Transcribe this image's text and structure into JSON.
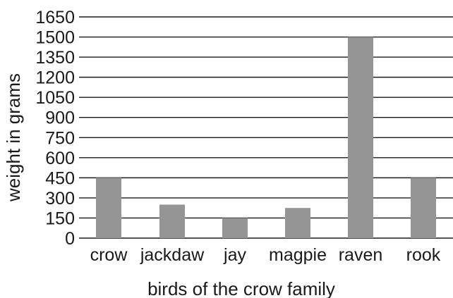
{
  "chart_data": {
    "type": "bar",
    "categories": [
      "crow",
      "jackdaw",
      "jay",
      "magpie",
      "raven",
      "rook"
    ],
    "values": [
      450,
      250,
      150,
      225,
      1500,
      450
    ],
    "xlabel": "birds of the crow family",
    "ylabel": "weight in grams",
    "ylim": [
      0,
      1650
    ],
    "yticks": [
      0,
      150,
      300,
      450,
      600,
      750,
      900,
      1050,
      1200,
      1350,
      1500,
      1650
    ],
    "grid": true,
    "bar_color": "#959596",
    "legend": "none"
  }
}
